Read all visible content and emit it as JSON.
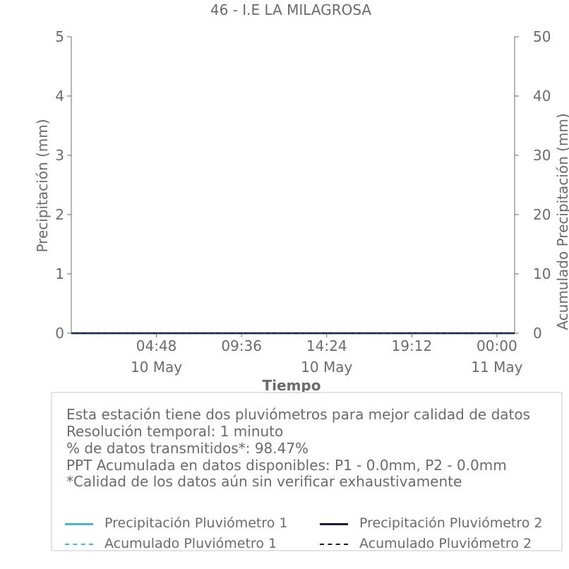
{
  "colors": {
    "text": "#6b6b6b",
    "axis": "#6b6b6b",
    "pluviometro_1": "#4fb3c7",
    "pluviometro_2": "#1b1b3a",
    "box_border": "#e2e2e2"
  },
  "chart_data": {
    "type": "line",
    "title": "46 - I.E LA MILAGROSA",
    "xlabel": "Tiempo",
    "ylabel_left": "Precipitación (mm)",
    "ylabel_right": "Acumulado Precipitación (mm)",
    "ylim_left": [
      0,
      5
    ],
    "ylim_right": [
      0,
      50
    ],
    "yticks_left": [
      "0",
      "1",
      "2",
      "3",
      "4",
      "5"
    ],
    "yticks_right": [
      "0",
      "10",
      "20",
      "30",
      "40",
      "50"
    ],
    "xlim": [
      "2024-05-10 00:00",
      "2024-05-11 01:00"
    ],
    "xticks": [
      {
        "t": "2024-05-10 04:48",
        "line1": "04:48",
        "line2": "10 May"
      },
      {
        "t": "2024-05-10 09:36",
        "line1": "09:36",
        "line2": ""
      },
      {
        "t": "2024-05-10 14:24",
        "line1": "14:24",
        "line2": "10 May"
      },
      {
        "t": "2024-05-10 19:12",
        "line1": "19:12",
        "line2": ""
      },
      {
        "t": "2024-05-11 00:00",
        "line1": "00:00",
        "line2": "11 May"
      }
    ],
    "grid": false,
    "legend_position": "bottom",
    "series": [
      {
        "name": "Precipitación Pluviómetro 1",
        "axis": "left",
        "style": "solid",
        "x": [
          "2024-05-10 00:00",
          "2024-05-11 01:00"
        ],
        "values": [
          0,
          0
        ]
      },
      {
        "name": "Precipitación Pluviómetro 2",
        "axis": "left",
        "style": "solid",
        "x": [
          "2024-05-10 00:00",
          "2024-05-11 01:00"
        ],
        "values": [
          0,
          0
        ]
      },
      {
        "name": "Acumulado Pluviómetro 1",
        "axis": "right",
        "style": "dashed",
        "x": [
          "2024-05-10 00:00",
          "2024-05-11 01:00"
        ],
        "values": [
          0,
          0
        ]
      },
      {
        "name": "Acumulado Pluviómetro 2",
        "axis": "right",
        "style": "dashed",
        "x": [
          "2024-05-10 00:00",
          "2024-05-11 01:00"
        ],
        "values": [
          0,
          0
        ]
      }
    ]
  },
  "info": {
    "lines": [
      "Esta estación tiene dos pluviómetros para mejor calidad de datos",
      "Resolución temporal: 1 minuto",
      "% de datos transmitidos*: 98.47%",
      "PPT Acumulada en datos disponibles: P1 - 0.0mm, P2 - 0.0mm",
      "*Calidad de los datos aún sin verificar exhaustivamente"
    ]
  },
  "legend": {
    "items": [
      {
        "label": "Precipitación Pluviómetro 1",
        "color": "#4fb3c7",
        "style": "solid"
      },
      {
        "label": "Precipitación Pluviómetro 2",
        "color": "#1b1b3a",
        "style": "solid"
      },
      {
        "label": "Acumulado Pluviómetro 1",
        "color": "#4fb3c7",
        "style": "dashed"
      },
      {
        "label": "Acumulado Pluviómetro 2",
        "color": "#1b1b3a",
        "style": "dashed"
      }
    ]
  }
}
